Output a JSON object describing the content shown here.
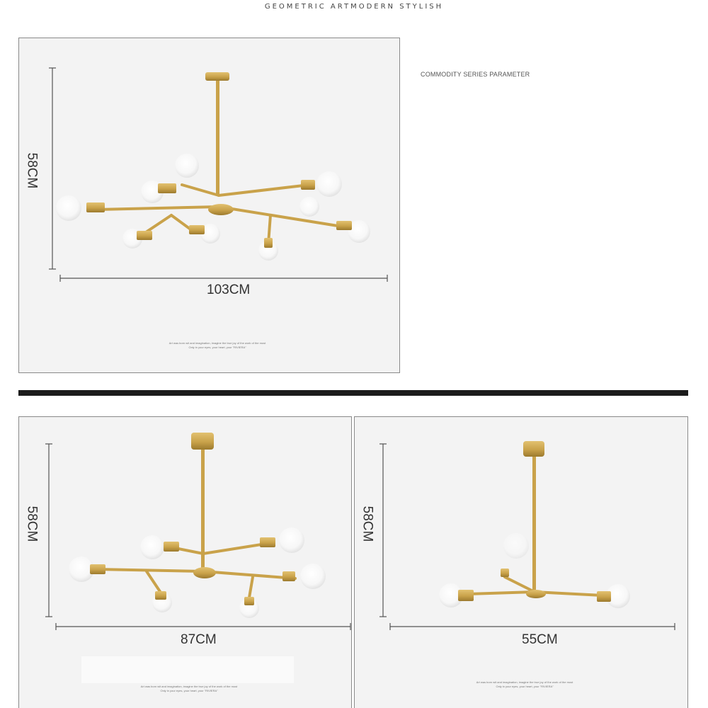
{
  "header": {
    "title": "GEOMETRIC ARTMODERN STYLISH"
  },
  "params": {
    "heading": "COMMODITY SERIES PARAMETER"
  },
  "products": [
    {
      "height_label": "58CM",
      "width_label": "103CM",
      "fine_print_1": "Art was born wit and imagination, imagine the true joy of the work of the most",
      "fine_print_2": "Only in your eyes, your heart, your \"RIVIERA\""
    },
    {
      "height_label": "58CM",
      "width_label": "87CM",
      "fine_print_1": "Art was born wit and imagination, imagine the true joy of the work of the most",
      "fine_print_2": "Only in your eyes, your heart, your \"RIVIERA\""
    },
    {
      "height_label": "58CM",
      "width_label": "55CM",
      "fine_print_1": "Art was born wit and imagination, imagine the true joy of the work of the most",
      "fine_print_2": "Only in your eyes, your heart, your \"RIVIERA\""
    }
  ],
  "colors": {
    "brass": "#c9a24a",
    "brass_dark": "#9c7a2e",
    "panel_bg": "#f3f3f3",
    "divider": "#1c1c1c"
  }
}
